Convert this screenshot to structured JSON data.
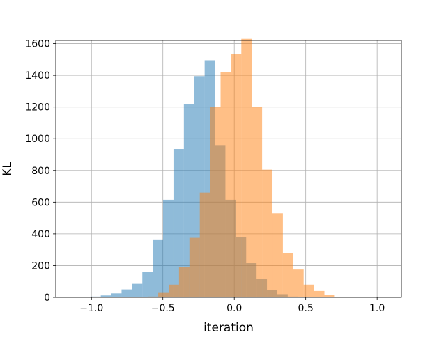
{
  "chart_data": {
    "type": "histogram",
    "xlabel": "iteration",
    "ylabel": "KL",
    "xlim": [
      -1.25,
      1.17
    ],
    "ylim": [
      0,
      1620
    ],
    "grid": true,
    "x_ticks": [
      {
        "value": -1.0,
        "label": "−1.0"
      },
      {
        "value": -0.5,
        "label": "−0.5"
      },
      {
        "value": 0.0,
        "label": "0.0"
      },
      {
        "value": 0.5,
        "label": "0.5"
      },
      {
        "value": 1.0,
        "label": "1.0"
      }
    ],
    "y_ticks": [
      {
        "value": 0,
        "label": "0"
      },
      {
        "value": 200,
        "label": "200"
      },
      {
        "value": 400,
        "label": "400"
      },
      {
        "value": 600,
        "label": "600"
      },
      {
        "value": 800,
        "label": "800"
      },
      {
        "value": 1000,
        "label": "1000"
      },
      {
        "value": 1200,
        "label": "1200"
      },
      {
        "value": 1400,
        "label": "1400"
      },
      {
        "value": 1600,
        "label": "1600"
      }
    ],
    "series": [
      {
        "color": "#1f77b4",
        "alpha": 0.5,
        "bin_start": -1.08,
        "bin_width": 0.0727,
        "values": [
          2,
          5,
          12,
          25,
          50,
          85,
          160,
          365,
          615,
          935,
          1220,
          1395,
          1495,
          960,
          615,
          380,
          215,
          115,
          45,
          20,
          5,
          2
        ]
      },
      {
        "color": "#ff7f0e",
        "alpha": 0.5,
        "bin_start": -0.605,
        "bin_width": 0.0727,
        "values": [
          5,
          28,
          80,
          190,
          375,
          660,
          1200,
          1420,
          1535,
          1630,
          1200,
          805,
          530,
          280,
          175,
          80,
          40,
          15
        ]
      }
    ]
  }
}
